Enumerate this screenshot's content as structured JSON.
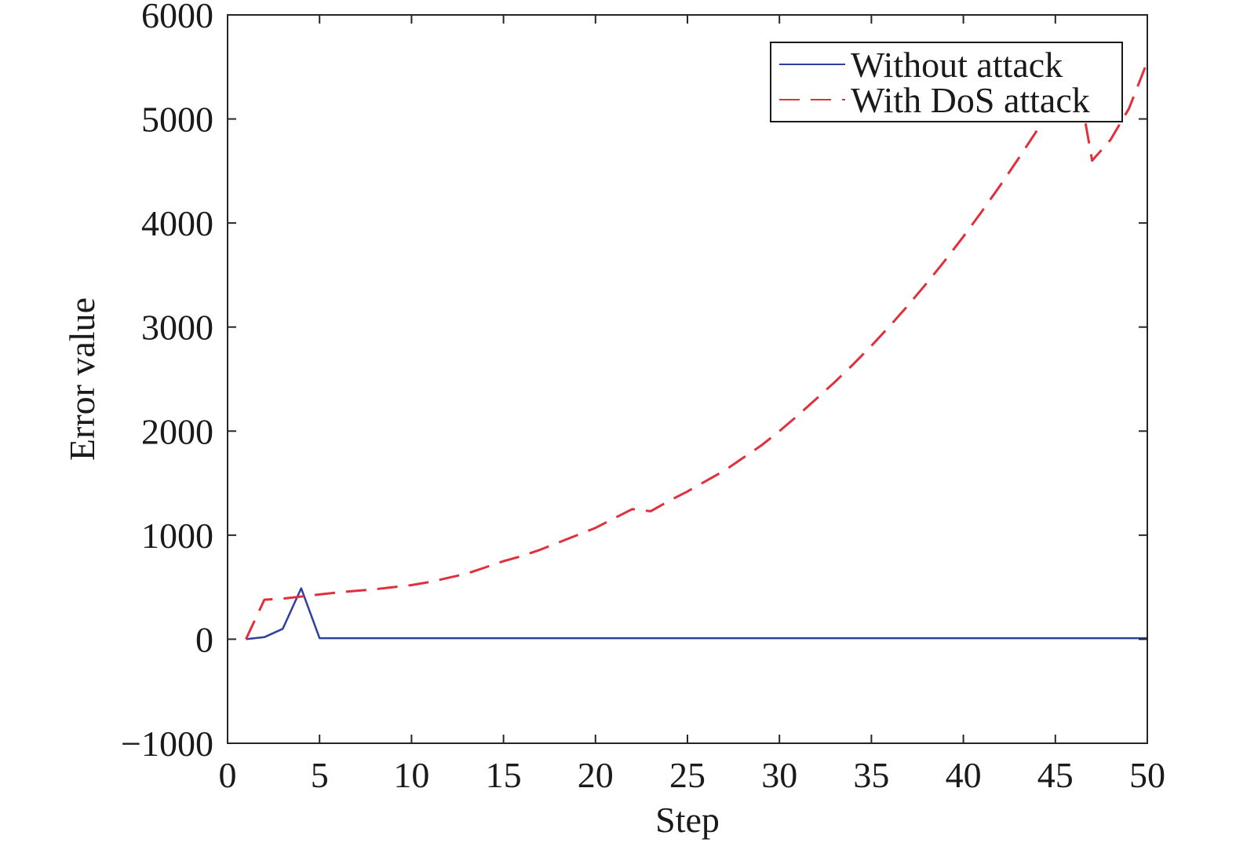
{
  "chart_data": {
    "type": "line",
    "title": "",
    "xlabel": "Step",
    "ylabel": "Error value",
    "xlim": [
      0,
      50
    ],
    "ylim": [
      -1000,
      6000
    ],
    "xticks": [
      0,
      5,
      10,
      15,
      20,
      25,
      30,
      35,
      40,
      45,
      50
    ],
    "yticks": [
      -1000,
      0,
      1000,
      2000,
      3000,
      4000,
      5000,
      6000
    ],
    "xtick_labels": [
      "0",
      "5",
      "10",
      "15",
      "20",
      "25",
      "30",
      "35",
      "40",
      "45",
      "50"
    ],
    "ytick_labels": [
      "−1000",
      "0",
      "1000",
      "2000",
      "3000",
      "4000",
      "5000",
      "6000"
    ],
    "grid": false,
    "legend_position": "top-right",
    "series": [
      {
        "name": "Without attack",
        "color": "#3040a0",
        "style": "solid",
        "x": [
          1,
          2,
          3,
          4,
          5,
          6,
          7,
          8,
          9,
          10,
          11,
          12,
          13,
          14,
          15,
          16,
          17,
          18,
          19,
          20,
          21,
          22,
          23,
          24,
          25,
          26,
          27,
          28,
          29,
          30,
          31,
          32,
          33,
          34,
          35,
          36,
          37,
          38,
          39,
          40,
          41,
          42,
          43,
          44,
          45,
          46,
          47,
          48,
          49,
          50
        ],
        "y": [
          0,
          20,
          100,
          490,
          10,
          10,
          10,
          10,
          10,
          10,
          10,
          10,
          10,
          10,
          10,
          10,
          10,
          10,
          10,
          10,
          10,
          10,
          10,
          10,
          10,
          10,
          10,
          10,
          10,
          10,
          10,
          10,
          10,
          10,
          10,
          10,
          10,
          10,
          10,
          10,
          10,
          10,
          10,
          10,
          10,
          10,
          10,
          10,
          10,
          10
        ]
      },
      {
        "name": "With DoS attack",
        "color": "#e0303c",
        "style": "dashed",
        "x": [
          1,
          2,
          3,
          4,
          5,
          6,
          7,
          8,
          9,
          10,
          11,
          12,
          13,
          14,
          15,
          16,
          17,
          18,
          19,
          20,
          21,
          22,
          23,
          24,
          25,
          26,
          27,
          28,
          29,
          30,
          31,
          32,
          33,
          34,
          35,
          36,
          37,
          38,
          39,
          40,
          41,
          42,
          43,
          44,
          45,
          46,
          46.6,
          47,
          48,
          49,
          50
        ],
        "y": [
          0,
          380,
          390,
          410,
          430,
          450,
          465,
          480,
          500,
          520,
          550,
          590,
          630,
          690,
          750,
          800,
          860,
          930,
          1000,
          1070,
          1160,
          1250,
          1230,
          1330,
          1420,
          1520,
          1620,
          1740,
          1860,
          2000,
          2150,
          2310,
          2470,
          2640,
          2820,
          3010,
          3210,
          3420,
          3640,
          3870,
          4110,
          4360,
          4620,
          4890,
          5170,
          5050,
          5000,
          4600,
          4800,
          5100,
          5550
        ]
      }
    ]
  }
}
